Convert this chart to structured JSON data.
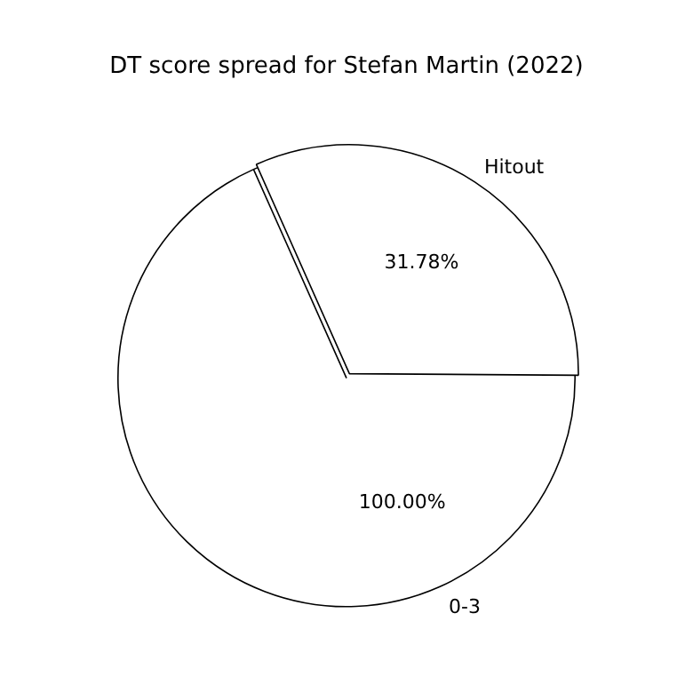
{
  "chart_data": {
    "type": "pie",
    "title": "DT score spread for Stefan Martin (2022)",
    "categories": [
      "0-3",
      "Hitout"
    ],
    "values": [
      100,
      31.78
    ],
    "colors": [
      "#ffffff",
      "#ffffff"
    ],
    "value_labels": [
      "100.00%",
      "31.78%"
    ],
    "legend": false
  }
}
